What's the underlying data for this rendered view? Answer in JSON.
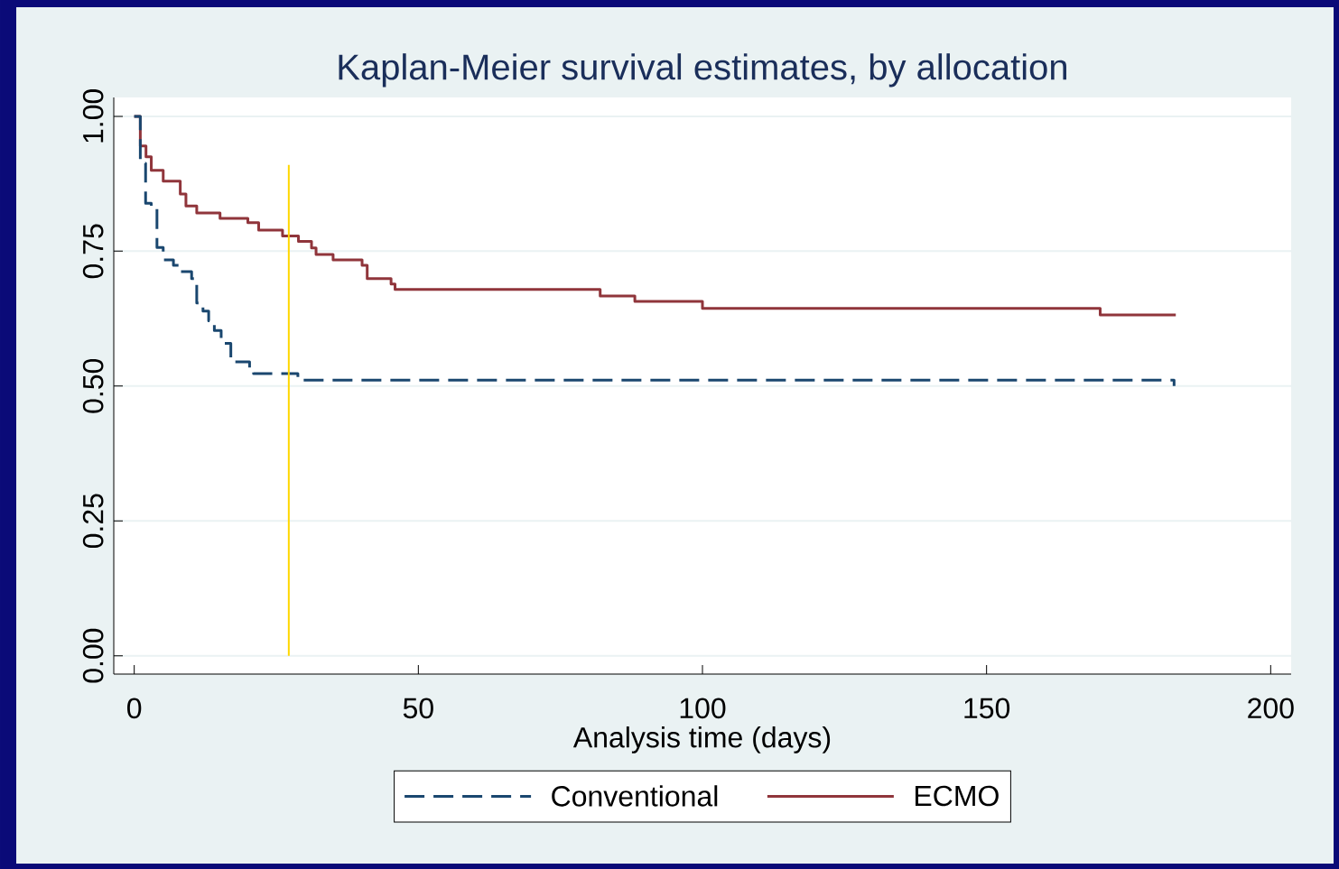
{
  "chart_data": {
    "type": "step",
    "title": "Kaplan-Meier survival estimates, by allocation",
    "xlabel": "Analysis time (days)",
    "xlim": [
      -3.6,
      203.6
    ],
    "ylim": [
      -0.034,
      1.035
    ],
    "xticks": [
      0,
      50,
      100,
      150,
      200
    ],
    "yticks": [
      {
        "value": 0,
        "label": "0.00"
      },
      {
        "value": 0.25,
        "label": "0.25"
      },
      {
        "value": 0.5,
        "label": "0.50"
      },
      {
        "value": 0.75,
        "label": "0.75"
      },
      {
        "value": 1,
        "label": "1.00"
      }
    ],
    "grid": "y",
    "legend": "bottom",
    "marker": "none",
    "ref_lines": [
      {
        "axis": "x",
        "value": 27.2,
        "color": "#ffd700"
      }
    ],
    "series": [
      {
        "name": "Conventional",
        "color": "#1a476f",
        "line_style": "dashed",
        "x": [
          0,
          1.07,
          2.0,
          3.0,
          4.0,
          5.1,
          6.9,
          8.1,
          10.1,
          10.6,
          11.0,
          12.1,
          13.1,
          14.1,
          15.3,
          17.0,
          20.3,
          21.0,
          28.8,
          183.0
        ],
        "values": [
          1.0,
          0.913,
          0.839,
          0.829,
          0.757,
          0.734,
          0.724,
          0.712,
          0.699,
          0.688,
          0.654,
          0.639,
          0.621,
          0.603,
          0.579,
          0.545,
          0.534,
          0.523,
          0.511,
          0.5
        ]
      },
      {
        "name": "ECMO",
        "color": "#90353b",
        "line_style": "solid",
        "x": [
          0,
          1.07,
          2.07,
          3.0,
          5.1,
          8.1,
          9.1,
          11.0,
          15.1,
          20.0,
          21.9,
          26.1,
          28.9,
          31.2,
          32.0,
          35.0,
          40.1,
          41.0,
          45.2,
          45.9,
          82.0,
          88.1,
          100.0,
          170.0,
          183.3
        ],
        "values": [
          1.0,
          0.945,
          0.925,
          0.9,
          0.88,
          0.856,
          0.834,
          0.821,
          0.811,
          0.803,
          0.789,
          0.778,
          0.768,
          0.756,
          0.744,
          0.734,
          0.724,
          0.699,
          0.689,
          0.679,
          0.667,
          0.657,
          0.644,
          0.632,
          0.632
        ]
      }
    ]
  }
}
